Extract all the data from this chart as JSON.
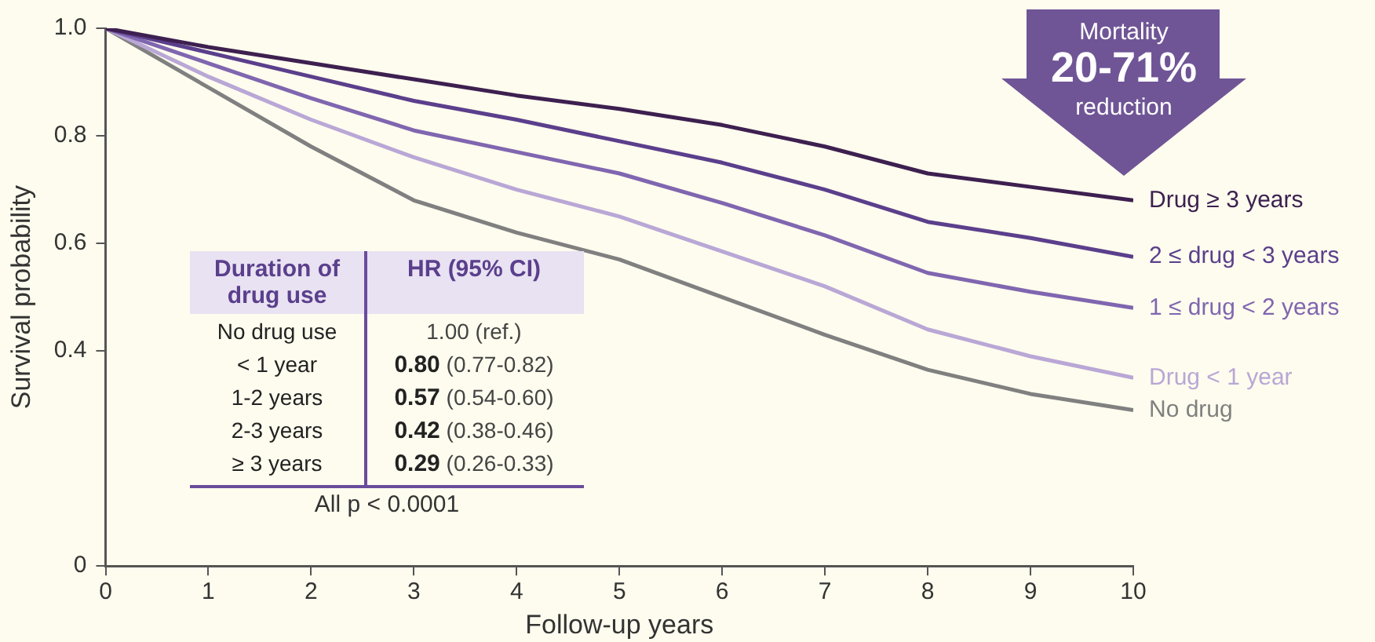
{
  "chart_data": {
    "type": "line",
    "xlabel": "Follow-up years",
    "ylabel": "Survival probability",
    "x": [
      0,
      1,
      2,
      3,
      4,
      5,
      6,
      7,
      8,
      9,
      10
    ],
    "xlim": [
      0,
      10
    ],
    "xticks": [
      0,
      1,
      2,
      3,
      4,
      5,
      6,
      7,
      8,
      9,
      10
    ],
    "ylim": [
      0,
      1.0
    ],
    "yticks": [
      0,
      0.4,
      0.6,
      0.8,
      {
        "value": 1.0,
        "label": "1.0"
      }
    ],
    "grid": false,
    "legend": false,
    "marker": "none",
    "line_style": "solid",
    "series": [
      {
        "name": "Drug ≥ 3 years",
        "color": "#3d2050",
        "values": [
          1,
          0.965,
          0.935,
          0.905,
          0.875,
          0.85,
          0.82,
          0.78,
          0.73,
          0.705,
          0.68
        ]
      },
      {
        "name": "2 ≤ drug < 3 years",
        "color": "#5b3f8c",
        "values": [
          1,
          0.955,
          0.91,
          0.865,
          0.83,
          0.79,
          0.75,
          0.7,
          0.64,
          0.61,
          0.575
        ]
      },
      {
        "name": "1 ≤ drug < 2 years",
        "color": "#8066b0",
        "values": [
          1,
          0.935,
          0.87,
          0.81,
          0.77,
          0.73,
          0.675,
          0.615,
          0.545,
          0.51,
          0.48
        ]
      },
      {
        "name": "Drug < 1 year",
        "color": "#b9a7d6",
        "values": [
          1,
          0.91,
          0.83,
          0.76,
          0.7,
          0.65,
          0.585,
          0.52,
          0.44,
          0.39,
          0.35
        ]
      },
      {
        "name": "No drug",
        "color": "#808080",
        "values": [
          1,
          0.89,
          0.78,
          0.68,
          0.62,
          0.57,
          0.5,
          0.43,
          0.365,
          0.32,
          0.29
        ]
      }
    ],
    "annotations": [
      "Duration of drug use",
      "HR (95% CI)",
      "No drug use",
      "1.00 (ref.)",
      "< 1 year",
      "0.80 (0.77-0.82)",
      "1-2 years",
      "0.57 (0.54-0.60)",
      "2-3 years",
      "0.42 (0.38-0.46)",
      "≥ 3 years",
      "0.29 (0.26-0.33)",
      "All p < 0.0001",
      "Mortality",
      "20-71%",
      "reduction"
    ]
  }
}
